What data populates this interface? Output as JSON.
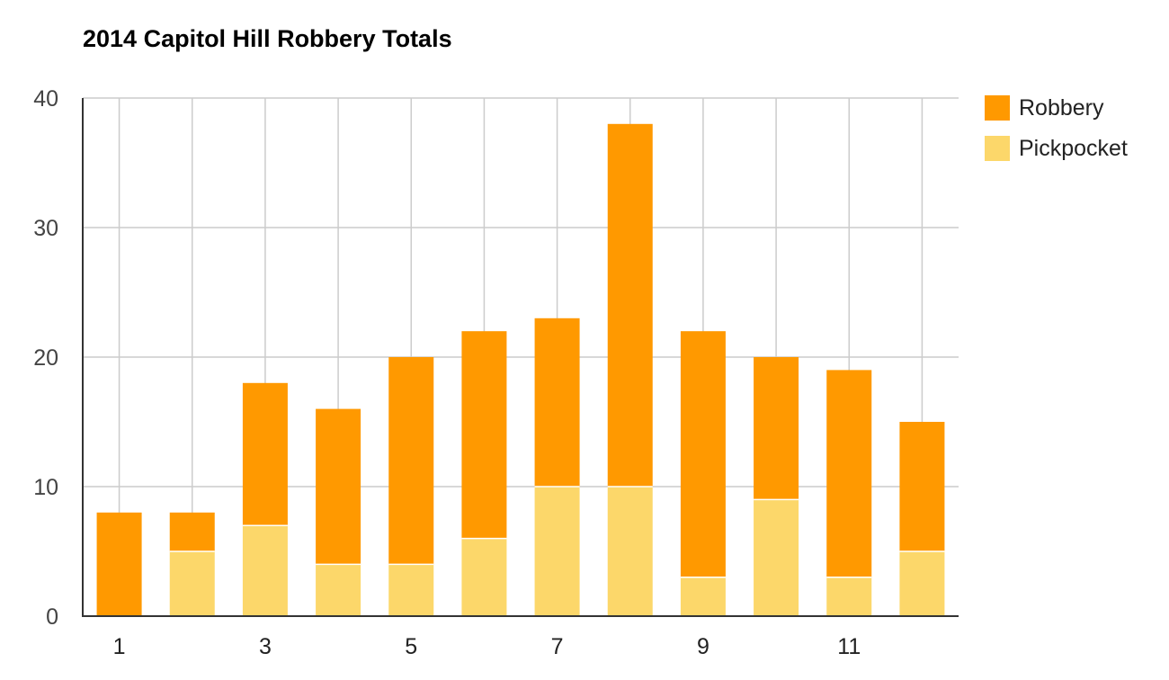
{
  "chart_data": {
    "type": "bar",
    "stacked": true,
    "title": "2014 Capitol Hill Robbery Totals",
    "xlabel": "",
    "ylabel": "",
    "categories": [
      1,
      2,
      3,
      4,
      5,
      6,
      7,
      8,
      9,
      10,
      11,
      12
    ],
    "x_tick_labels": [
      "1",
      "3",
      "5",
      "7",
      "9",
      "11"
    ],
    "y_ticks": [
      0,
      10,
      20,
      30,
      40
    ],
    "ylim": [
      0,
      40
    ],
    "grid": true,
    "legend_position": "right",
    "series": [
      {
        "name": "Pickpocket",
        "color": "#fcd76a",
        "values": [
          0,
          5,
          7,
          4,
          4,
          6,
          10,
          10,
          3,
          9,
          3,
          5
        ]
      },
      {
        "name": "Robbery",
        "color": "#ff9900",
        "values": [
          8,
          3,
          11,
          12,
          16,
          16,
          13,
          28,
          19,
          11,
          16,
          10
        ]
      }
    ]
  },
  "legend": [
    {
      "label": "Robbery",
      "color": "#ff9900"
    },
    {
      "label": "Pickpocket",
      "color": "#fcd76a"
    }
  ]
}
